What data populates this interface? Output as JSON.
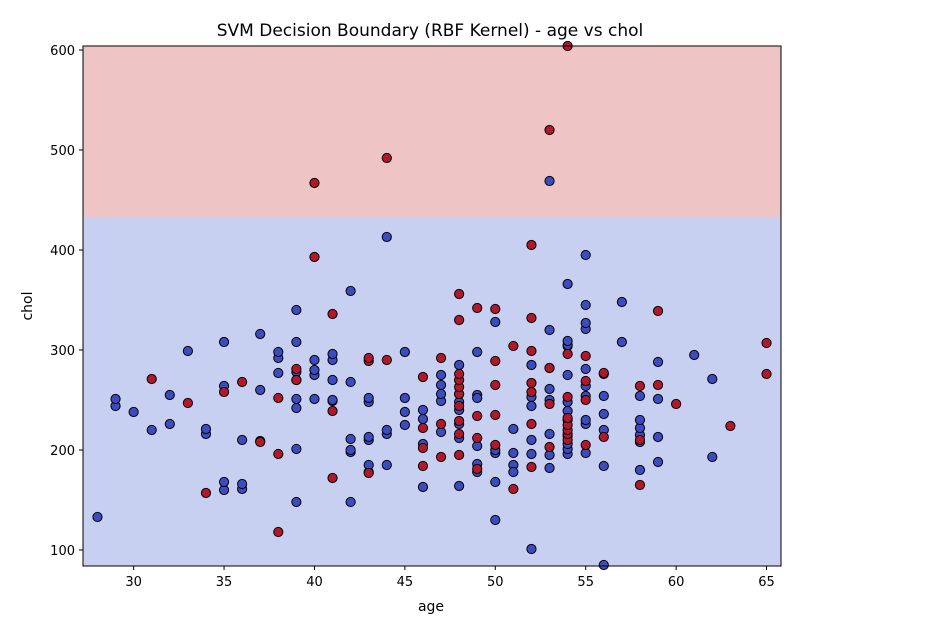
{
  "chart_data": {
    "type": "scatter",
    "title": "SVM Decision Boundary (RBF Kernel) - age vs chol",
    "xlabel": "age",
    "ylabel": "chol",
    "xlim": [
      27.2,
      65.8
    ],
    "ylim": [
      84,
      604
    ],
    "xticks": [
      30,
      35,
      40,
      45,
      50,
      55,
      60,
      65
    ],
    "yticks": [
      100,
      200,
      300,
      400,
      500,
      600
    ],
    "grid": false,
    "legend": "none",
    "colors": {
      "region_class1": "#eec4c4",
      "region_class0": "#c8d0f1",
      "class1_point": "#b2182b",
      "class0_point": "#3b4cc0",
      "point_edge": "#000000"
    },
    "regions": [
      {
        "class": 1,
        "chol_range": [
          433,
          604
        ]
      },
      {
        "class": 0,
        "chol_range": [
          84,
          433
        ]
      }
    ],
    "series": [
      {
        "class": 0,
        "points": [
          [
            28,
            133
          ],
          [
            29,
            244
          ],
          [
            29,
            251
          ],
          [
            30,
            238
          ],
          [
            31,
            220
          ],
          [
            32,
            226
          ],
          [
            32,
            255
          ],
          [
            33,
            299
          ],
          [
            34,
            216
          ],
          [
            34,
            221
          ],
          [
            35,
            160
          ],
          [
            35,
            168
          ],
          [
            35,
            264
          ],
          [
            35,
            308
          ],
          [
            36,
            161
          ],
          [
            36,
            166
          ],
          [
            36,
            210
          ],
          [
            37,
            209
          ],
          [
            37,
            260
          ],
          [
            37,
            316
          ],
          [
            38,
            277
          ],
          [
            38,
            292
          ],
          [
            38,
            298
          ],
          [
            39,
            148
          ],
          [
            39,
            201
          ],
          [
            39,
            242
          ],
          [
            39,
            251
          ],
          [
            39,
            270
          ],
          [
            39,
            278
          ],
          [
            39,
            308
          ],
          [
            39,
            340
          ],
          [
            40,
            251
          ],
          [
            40,
            275
          ],
          [
            40,
            280
          ],
          [
            40,
            290
          ],
          [
            41,
            249
          ],
          [
            41,
            250
          ],
          [
            41,
            270
          ],
          [
            41,
            290
          ],
          [
            41,
            296
          ],
          [
            42,
            148
          ],
          [
            42,
            198
          ],
          [
            42,
            200
          ],
          [
            42,
            211
          ],
          [
            42,
            268
          ],
          [
            42,
            359
          ],
          [
            43,
            178
          ],
          [
            43,
            185
          ],
          [
            43,
            210
          ],
          [
            43,
            213
          ],
          [
            43,
            248
          ],
          [
            43,
            252
          ],
          [
            44,
            185
          ],
          [
            44,
            216
          ],
          [
            44,
            220
          ],
          [
            44,
            413
          ],
          [
            45,
            225
          ],
          [
            45,
            238
          ],
          [
            45,
            252
          ],
          [
            45,
            298
          ],
          [
            46,
            163
          ],
          [
            46,
            231
          ],
          [
            46,
            240
          ],
          [
            46,
            206
          ],
          [
            47,
            218
          ],
          [
            47,
            249
          ],
          [
            47,
            256
          ],
          [
            47,
            265
          ],
          [
            47,
            275
          ],
          [
            48,
            164
          ],
          [
            48,
            226
          ],
          [
            48,
            212
          ],
          [
            48,
            240
          ],
          [
            48,
            248
          ],
          [
            48,
            256
          ],
          [
            48,
            285
          ],
          [
            49,
            178
          ],
          [
            49,
            186
          ],
          [
            49,
            204
          ],
          [
            49,
            255
          ],
          [
            49,
            252
          ],
          [
            49,
            298
          ],
          [
            50,
            130
          ],
          [
            50,
            168
          ],
          [
            50,
            197
          ],
          [
            50,
            200
          ],
          [
            50,
            328
          ],
          [
            51,
            185
          ],
          [
            51,
            178
          ],
          [
            51,
            197
          ],
          [
            51,
            221
          ],
          [
            52,
            101
          ],
          [
            52,
            196
          ],
          [
            52,
            210
          ],
          [
            52,
            253
          ],
          [
            52,
            244
          ],
          [
            52,
            285
          ],
          [
            53,
            182
          ],
          [
            53,
            195
          ],
          [
            53,
            216
          ],
          [
            53,
            250
          ],
          [
            53,
            261
          ],
          [
            53,
            282
          ],
          [
            53,
            320
          ],
          [
            53,
            469
          ],
          [
            54,
            196
          ],
          [
            54,
            201
          ],
          [
            54,
            206
          ],
          [
            54,
            214
          ],
          [
            54,
            239
          ],
          [
            54,
            230
          ],
          [
            54,
            248
          ],
          [
            54,
            275
          ],
          [
            54,
            304
          ],
          [
            54,
            305
          ],
          [
            54,
            309
          ],
          [
            54,
            366
          ],
          [
            55,
            197
          ],
          [
            55,
            226
          ],
          [
            55,
            230
          ],
          [
            55,
            254
          ],
          [
            55,
            264
          ],
          [
            55,
            281
          ],
          [
            55,
            321
          ],
          [
            55,
            327
          ],
          [
            55,
            345
          ],
          [
            55,
            395
          ],
          [
            56,
            85
          ],
          [
            56,
            184
          ],
          [
            56,
            220
          ],
          [
            56,
            236
          ],
          [
            56,
            254
          ],
          [
            56,
            276
          ],
          [
            57,
            308
          ],
          [
            57,
            348
          ],
          [
            58,
            180
          ],
          [
            58,
            208
          ],
          [
            58,
            215
          ],
          [
            58,
            222
          ],
          [
            58,
            230
          ],
          [
            58,
            254
          ],
          [
            59,
            188
          ],
          [
            59,
            213
          ],
          [
            59,
            251
          ],
          [
            59,
            288
          ],
          [
            61,
            295
          ],
          [
            62,
            193
          ],
          [
            62,
            271
          ]
        ]
      },
      {
        "class": 1,
        "points": [
          [
            31,
            271
          ],
          [
            33,
            247
          ],
          [
            34,
            157
          ],
          [
            35,
            258
          ],
          [
            36,
            268
          ],
          [
            37,
            208
          ],
          [
            38,
            118
          ],
          [
            38,
            196
          ],
          [
            38,
            252
          ],
          [
            39,
            270
          ],
          [
            39,
            281
          ],
          [
            40,
            393
          ],
          [
            40,
            467
          ],
          [
            41,
            172
          ],
          [
            41,
            239
          ],
          [
            41,
            336
          ],
          [
            43,
            177
          ],
          [
            43,
            289
          ],
          [
            43,
            292
          ],
          [
            44,
            290
          ],
          [
            44,
            492
          ],
          [
            46,
            184
          ],
          [
            46,
            202
          ],
          [
            46,
            222
          ],
          [
            46,
            273
          ],
          [
            47,
            193
          ],
          [
            47,
            226
          ],
          [
            47,
            292
          ],
          [
            48,
            195
          ],
          [
            48,
            216
          ],
          [
            48,
            229
          ],
          [
            48,
            244
          ],
          [
            48,
            256
          ],
          [
            48,
            263
          ],
          [
            48,
            270
          ],
          [
            48,
            276
          ],
          [
            48,
            330
          ],
          [
            48,
            356
          ],
          [
            49,
            181
          ],
          [
            49,
            212
          ],
          [
            49,
            234
          ],
          [
            49,
            342
          ],
          [
            50,
            205
          ],
          [
            50,
            235
          ],
          [
            50,
            265
          ],
          [
            50,
            289
          ],
          [
            50,
            341
          ],
          [
            51,
            161
          ],
          [
            51,
            304
          ],
          [
            52,
            183
          ],
          [
            52,
            226
          ],
          [
            52,
            258
          ],
          [
            52,
            267
          ],
          [
            52,
            299
          ],
          [
            52,
            332
          ],
          [
            52,
            405
          ],
          [
            53,
            203
          ],
          [
            53,
            246
          ],
          [
            53,
            282
          ],
          [
            53,
            520
          ],
          [
            54,
            210
          ],
          [
            54,
            216
          ],
          [
            54,
            220
          ],
          [
            54,
            225
          ],
          [
            54,
            232
          ],
          [
            54,
            253
          ],
          [
            54,
            296
          ],
          [
            54,
            604
          ],
          [
            55,
            205
          ],
          [
            55,
            250
          ],
          [
            55,
            269
          ],
          [
            55,
            294
          ],
          [
            56,
            213
          ],
          [
            56,
            277
          ],
          [
            58,
            165
          ],
          [
            58,
            210
          ],
          [
            58,
            264
          ],
          [
            59,
            265
          ],
          [
            59,
            339
          ],
          [
            60,
            246
          ],
          [
            63,
            224
          ],
          [
            65,
            276
          ],
          [
            65,
            307
          ]
        ]
      }
    ]
  }
}
